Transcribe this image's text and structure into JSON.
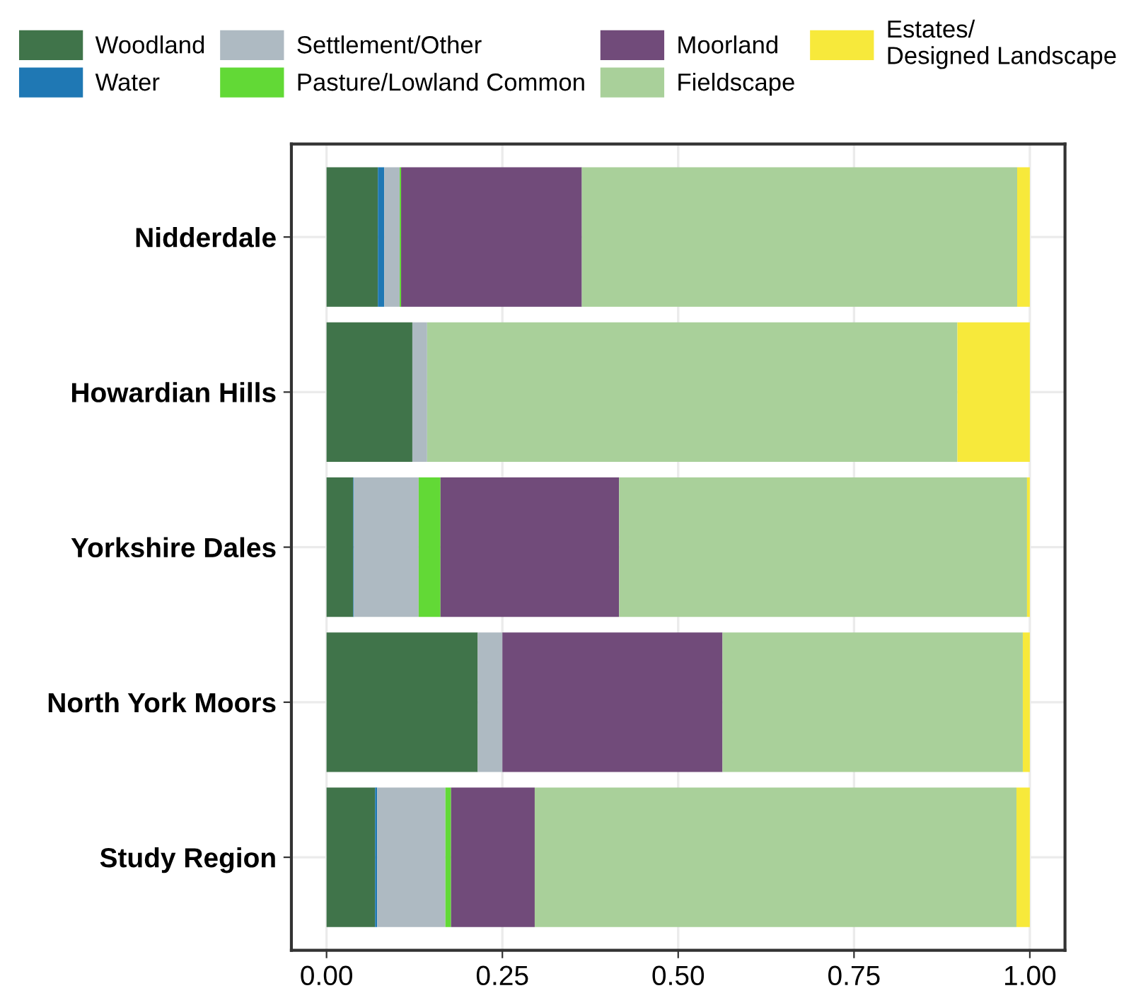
{
  "chart_data": {
    "type": "bar",
    "orientation": "horizontal",
    "stacked": true,
    "categories": [
      "Nidderdale",
      "Howardian Hills",
      "Yorkshire Dales",
      "North York Moors",
      "Study Region"
    ],
    "series": [
      {
        "name": "Woodland",
        "color": "#40744a",
        "values": [
          0.073,
          0.122,
          0.038,
          0.215,
          0.069
        ]
      },
      {
        "name": "Water",
        "color": "#1f78b4",
        "values": [
          0.009,
          0,
          0.001,
          0,
          0.003
        ]
      },
      {
        "name": "Settlement/Other",
        "color": "#aebac2",
        "values": [
          0.022,
          0.021,
          0.092,
          0.035,
          0.097
        ]
      },
      {
        "name": "Pasture/Lowland Common",
        "color": "#62d936",
        "values": [
          0.002,
          0,
          0.031,
          0,
          0.008
        ]
      },
      {
        "name": "Moorland",
        "color": "#714b7a",
        "values": [
          0.257,
          0,
          0.254,
          0.313,
          0.119
        ]
      },
      {
        "name": "Fieldscape",
        "color": "#a9d09a",
        "values": [
          0.619,
          0.754,
          0.58,
          0.427,
          0.685
        ]
      },
      {
        "name": "Estates/\nDesigned Landscape",
        "color": "#f7e93b",
        "values": [
          0.018,
          0.103,
          0.004,
          0.01,
          0.019
        ]
      }
    ],
    "xlim": [
      -0.05,
      1.05
    ],
    "xticks": [
      {
        "value": 0,
        "label": "0.00"
      },
      {
        "value": 0.25,
        "label": "0.25"
      },
      {
        "value": 0.5,
        "label": "0.50"
      },
      {
        "value": 0.75,
        "label": "0.75"
      },
      {
        "value": 1,
        "label": "1.00"
      }
    ],
    "grid": true,
    "legend": "top"
  }
}
